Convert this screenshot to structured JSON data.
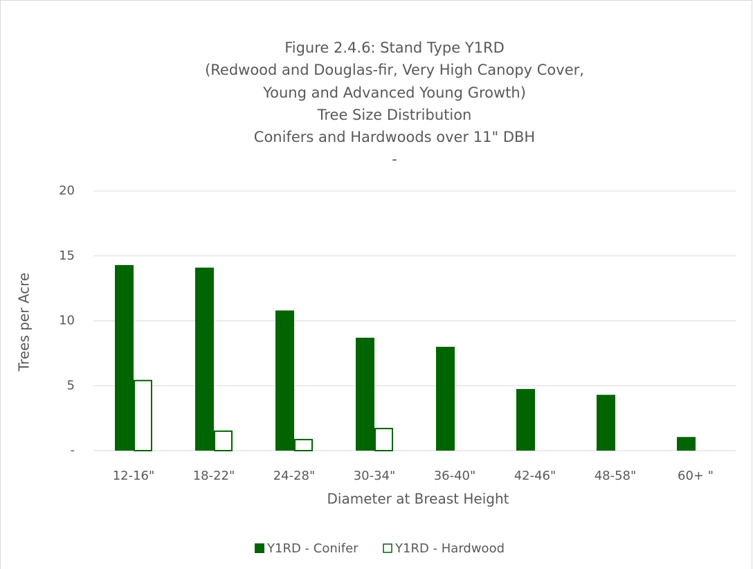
{
  "chart_data": {
    "type": "bar",
    "title": [
      "Figure 2.4.6: Stand Type Y1RD",
      "(Redwood and Douglas-fir, Very High Canopy Cover,",
      "Young and Advanced Young Growth)",
      "Tree Size Distribution",
      "Conifers and Hardwoods over 11\" DBH",
      "-"
    ],
    "x_label": "Diameter at Breast Height",
    "y_label": "Trees per Acre",
    "categories": [
      "12-16\"",
      "18-22\"",
      "24-28\"",
      "30-34\"",
      "36-40\"",
      "42-46\"",
      "48-58\"",
      "60+ \""
    ],
    "series": [
      {
        "name": "Y1RD - Conifer",
        "color": "#006400",
        "style": "filled",
        "values": [
          14.3,
          14.1,
          10.8,
          8.7,
          8.0,
          4.75,
          4.3,
          1.05
        ]
      },
      {
        "name": "Y1RD - Hardwood",
        "color": "#006400",
        "style": "outline",
        "values": [
          5.4,
          1.5,
          0.85,
          1.7,
          null,
          null,
          null,
          null
        ]
      }
    ],
    "ylim": [
      0,
      20
    ],
    "yticks": [
      {
        "value": 0,
        "label": "-"
      },
      5,
      10,
      15,
      20
    ],
    "grid": true,
    "legend": "bottom"
  }
}
